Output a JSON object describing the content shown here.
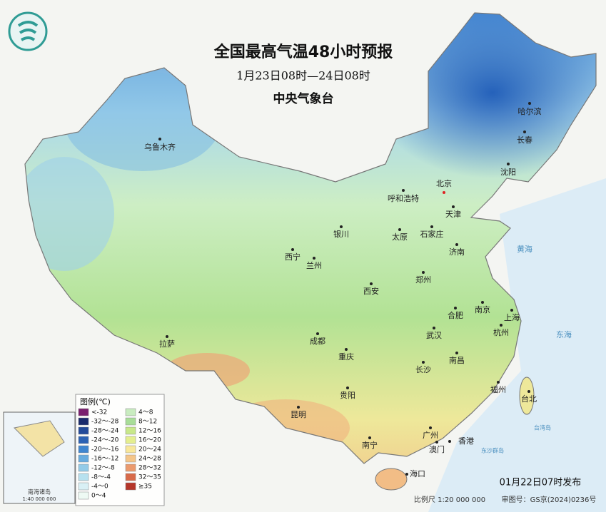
{
  "header": {
    "title": "全国最高气温48小时预报",
    "subtitle": "1月23日08时—24日08时",
    "agency": "中央气象台"
  },
  "cities": [
    "乌鲁木齐",
    "哈尔滨",
    "长春",
    "沈阳",
    "呼和浩特",
    "北京",
    "天津",
    "银川",
    "太原",
    "石家庄",
    "西宁",
    "兰州",
    "济南",
    "郑州",
    "西安",
    "合肥",
    "南京",
    "上海",
    "成都",
    "武汉",
    "杭州",
    "拉萨",
    "重庆",
    "长沙",
    "南昌",
    "贵阳",
    "福州",
    "台北",
    "昆明",
    "广州",
    "香港",
    "澳门",
    "南宁",
    "海口"
  ],
  "sea_labels": [
    "黄海",
    "东海",
    "台湾岛",
    "东沙群岛"
  ],
  "legend": {
    "title": "图例(℃)",
    "items": [
      {
        "label": "<-32",
        "color": "#7a1f6e"
      },
      {
        "label": "-32～-28",
        "color": "#1a2a6c"
      },
      {
        "label": "-28～-24",
        "color": "#234a9a"
      },
      {
        "label": "-24～-20",
        "color": "#2c62b4"
      },
      {
        "label": "-20～-16",
        "color": "#3f86d0"
      },
      {
        "label": "-16～-12",
        "color": "#68acdf"
      },
      {
        "label": "-12～-8",
        "color": "#93cbe8"
      },
      {
        "label": "-8～-4",
        "color": "#b7e1ef"
      },
      {
        "label": "-4～0",
        "color": "#d9f0f5"
      },
      {
        "label": "0～4",
        "color": "#eefaf4"
      },
      {
        "label": "4～8",
        "color": "#c9ecc0"
      },
      {
        "label": "8～12",
        "color": "#a8dd98"
      },
      {
        "label": "12～16",
        "color": "#c8e88a"
      },
      {
        "label": "16～20",
        "color": "#e4ee8f"
      },
      {
        "label": "20～24",
        "color": "#f8e79a"
      },
      {
        "label": "24～28",
        "color": "#f4c589"
      },
      {
        "label": "28～32",
        "color": "#eb9a6e"
      },
      {
        "label": "32～35",
        "color": "#d86a4a"
      },
      {
        "label": "≥35",
        "color": "#b5362a"
      }
    ]
  },
  "inset": {
    "title": "南海诸岛",
    "scale": "1:40 000 000"
  },
  "footer": {
    "issued": "01月22日07时发布",
    "scale": "比例尺 1:20 000 000",
    "approval": "审图号：GS京(2024)0236号"
  }
}
